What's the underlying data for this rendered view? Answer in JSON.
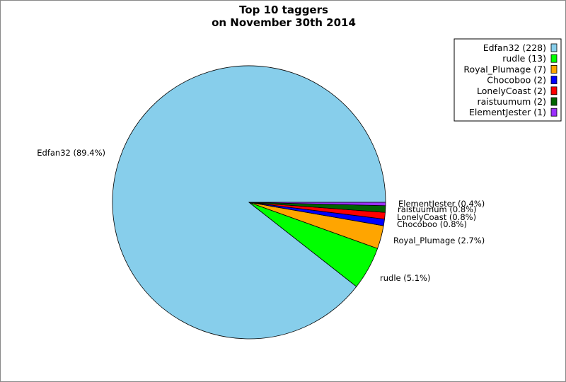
{
  "chart_data": {
    "type": "pie",
    "title": "Top 10 taggers",
    "subtitle": "on November 30th 2014",
    "legend_placement": "top-right",
    "slices": [
      {
        "name": "Edfan32",
        "value": 228,
        "percent_label": "Edfan32 (89.4%)",
        "legend_label": "Edfan32 (228)",
        "color": "#87ceeb"
      },
      {
        "name": "rudle",
        "value": 13,
        "percent_label": "rudle (5.1%)",
        "legend_label": "rudle (13)",
        "color": "#00ff00"
      },
      {
        "name": "Royal_Plumage",
        "value": 7,
        "percent_label": "Royal_Plumage (2.7%)",
        "legend_label": "Royal_Plumage (7)",
        "color": "#ffa500"
      },
      {
        "name": "Chocoboo",
        "value": 2,
        "percent_label": "Chocoboo (0.8%)",
        "legend_label": "Chocoboo (2)",
        "color": "#0000ff"
      },
      {
        "name": "LonelyCoast",
        "value": 2,
        "percent_label": "LonelyCoast (0.8%)",
        "legend_label": "LonelyCoast (2)",
        "color": "#ff0000"
      },
      {
        "name": "raistuumum",
        "value": 2,
        "percent_label": "raistuumum (0.8%)",
        "legend_label": "raistuumum (2)",
        "color": "#006400"
      },
      {
        "name": "ElementJester",
        "value": 1,
        "percent_label": "ElementJester (0.4%)",
        "legend_label": "ElementJester (1)",
        "color": "#9b30ff"
      }
    ]
  }
}
